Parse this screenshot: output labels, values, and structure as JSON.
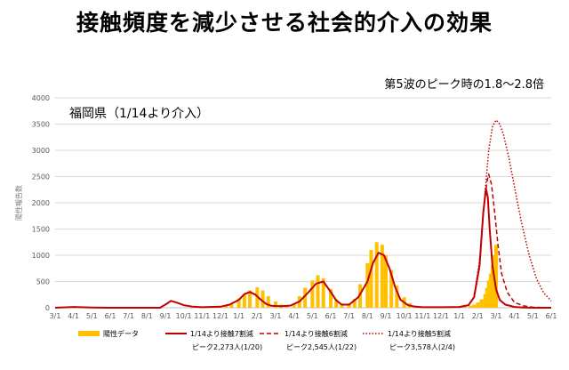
{
  "title": "接触頻度を減少させる社会的介入の効果",
  "chart_data": {
    "type": "bar",
    "annotation": "第5波のピーク時の1.8〜2.8倍",
    "region_label": "福岡県（1/14より介入）",
    "ylabel": "陽性報告数",
    "ylim": [
      0,
      4000
    ],
    "yticks": [
      0,
      500,
      1000,
      1500,
      2000,
      2500,
      3000,
      3500,
      4000
    ],
    "x_ticks": [
      "3/1",
      "4/1",
      "5/1",
      "6/1",
      "7/1",
      "8/1",
      "9/1",
      "10/1",
      "11/1",
      "12/1",
      "1/1",
      "2/1",
      "3/1",
      "4/1",
      "5/1",
      "6/1",
      "7/1",
      "8/1",
      "9/1",
      "10/1",
      "11/1",
      "12/1",
      "1/1",
      "2/1",
      "3/1",
      "4/1",
      "5/1",
      "6/1"
    ],
    "x_range_months": [
      0,
      27
    ],
    "grid": "horizontal",
    "observed_bars": {
      "name": "陽性データ",
      "color": "#ffc000",
      "month_offset": [
        9.3,
        9.6,
        10.0,
        10.3,
        10.6,
        11.0,
        11.3,
        11.6,
        12.0,
        12.3,
        12.6,
        13.0,
        13.3,
        13.6,
        14.0,
        14.3,
        14.6,
        15.0,
        15.3,
        15.6,
        16.0,
        16.3,
        16.6,
        17.0,
        17.2,
        17.5,
        17.8,
        18.0,
        18.3,
        18.6,
        19.0,
        19.3,
        19.6,
        20.0,
        20.3,
        20.6,
        21.0,
        21.3,
        21.6,
        22.0,
        22.3,
        22.6,
        22.8,
        23.0,
        23.2,
        23.4,
        23.5,
        23.6,
        23.7,
        23.8,
        23.9,
        24.0
      ],
      "values": [
        40,
        80,
        180,
        250,
        330,
        390,
        330,
        220,
        120,
        60,
        40,
        80,
        220,
        380,
        520,
        620,
        560,
        360,
        160,
        70,
        80,
        170,
        450,
        850,
        1100,
        1250,
        1200,
        1000,
        720,
        420,
        200,
        90,
        40,
        20,
        12,
        10,
        12,
        15,
        12,
        15,
        20,
        40,
        60,
        100,
        160,
        260,
        380,
        520,
        650,
        800,
        1000,
        1200
      ]
    },
    "series": [
      {
        "name": "1/14より接触7割減",
        "style": "solid",
        "color": "#c00000",
        "peak_label": "ピーク2,273人(1/20)",
        "x": [
          0,
          1,
          2,
          3,
          4,
          5,
          5.7,
          6,
          6.3,
          6.6,
          7,
          7.5,
          8,
          9,
          9.5,
          10,
          10.3,
          10.6,
          10.9,
          11.2,
          11.5,
          11.8,
          12.3,
          12.8,
          13.3,
          13.8,
          14.2,
          14.6,
          15,
          15.3,
          15.6,
          16,
          16.5,
          17,
          17.3,
          17.6,
          17.9,
          18.2,
          18.5,
          18.8,
          19.2,
          19.6,
          20,
          21,
          22,
          22.5,
          22.8,
          23.1,
          23.3,
          23.45,
          23.55,
          23.65,
          23.8,
          24.0,
          24.2,
          24.5,
          25,
          25.5,
          26,
          26.5,
          27
        ],
        "y": [
          0,
          15,
          5,
          0,
          0,
          0,
          0,
          60,
          130,
          100,
          50,
          20,
          10,
          20,
          60,
          150,
          260,
          300,
          250,
          150,
          70,
          35,
          30,
          40,
          120,
          300,
          460,
          500,
          300,
          140,
          60,
          60,
          200,
          500,
          850,
          1050,
          1000,
          750,
          400,
          150,
          50,
          20,
          10,
          10,
          15,
          50,
          200,
          800,
          1800,
          2273,
          2100,
          1500,
          800,
          350,
          150,
          60,
          15,
          5,
          0,
          0,
          0
        ]
      },
      {
        "name": "1/14より接触6割減",
        "style": "dashed",
        "color": "#c00000",
        "peak_label": "ピーク2,545人(1/22)",
        "x": [
          22,
          22.5,
          22.8,
          23.1,
          23.3,
          23.5,
          23.6,
          23.75,
          23.9,
          24.1,
          24.3,
          24.6,
          25,
          25.5,
          26,
          26.5,
          27
        ],
        "y": [
          15,
          50,
          200,
          800,
          1800,
          2400,
          2545,
          2350,
          1900,
          1200,
          650,
          300,
          100,
          35,
          10,
          3,
          0
        ]
      },
      {
        "name": "1/14より接触5割減",
        "style": "dotted",
        "color": "#c00000",
        "peak_label": "ピーク3,578人(2/4)",
        "x": [
          22,
          22.5,
          22.8,
          23.1,
          23.4,
          23.6,
          23.8,
          24.0,
          24.2,
          24.4,
          24.7,
          25,
          25.4,
          25.8,
          26.2,
          26.6,
          27
        ],
        "y": [
          15,
          50,
          200,
          900,
          2200,
          3000,
          3450,
          3578,
          3500,
          3300,
          2850,
          2300,
          1600,
          1000,
          550,
          280,
          130
        ]
      }
    ],
    "legend_position": "bottom"
  }
}
